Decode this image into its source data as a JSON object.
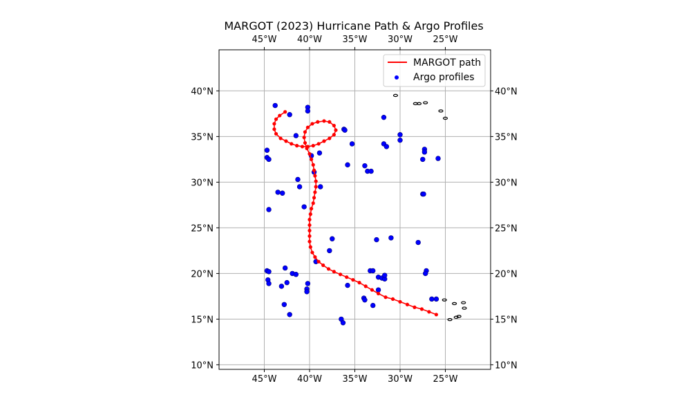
{
  "chart_data": {
    "type": "scatter",
    "title": "MARGOT (2023) Hurricane Path & Argo Profiles",
    "xlim": [
      -50,
      -20
    ],
    "ylim": [
      9.5,
      44.5
    ],
    "x_ticks": [
      -45,
      -40,
      -35,
      -30,
      -25
    ],
    "x_tick_labels": [
      "45°W",
      "40°W",
      "35°W",
      "30°W",
      "25°W"
    ],
    "y_ticks": [
      10,
      15,
      20,
      25,
      30,
      35,
      40
    ],
    "y_tick_labels": [
      "10°N",
      "15°N",
      "20°N",
      "25°N",
      "30°N",
      "35°N",
      "40°N"
    ],
    "grid": true,
    "legend": {
      "placement": "top-right",
      "entries": [
        {
          "label": "MARGOT path",
          "color": "#ff0000",
          "kind": "line"
        },
        {
          "label": "Argo profiles",
          "color": "#0000ff",
          "kind": "marker"
        }
      ]
    },
    "series": [
      {
        "name": "MARGOT path",
        "color": "#ff0000",
        "points": [
          [
            -26.0,
            15.5
          ],
          [
            -26.8,
            15.8
          ],
          [
            -27.6,
            16.1
          ],
          [
            -28.4,
            16.3
          ],
          [
            -29.2,
            16.6
          ],
          [
            -30.0,
            16.9
          ],
          [
            -30.8,
            17.2
          ],
          [
            -31.6,
            17.4
          ],
          [
            -32.4,
            17.8
          ],
          [
            -33.1,
            18.2
          ],
          [
            -33.8,
            18.6
          ],
          [
            -34.5,
            19.0
          ],
          [
            -35.2,
            19.3
          ],
          [
            -35.9,
            19.6
          ],
          [
            -36.6,
            19.9
          ],
          [
            -37.3,
            20.2
          ],
          [
            -37.9,
            20.5
          ],
          [
            -38.5,
            20.9
          ],
          [
            -39.0,
            21.3
          ],
          [
            -39.4,
            21.8
          ],
          [
            -39.7,
            22.3
          ],
          [
            -39.9,
            22.9
          ],
          [
            -40.0,
            23.5
          ],
          [
            -40.0,
            24.1
          ],
          [
            -40.0,
            24.7
          ],
          [
            -40.0,
            25.3
          ],
          [
            -40.0,
            25.9
          ],
          [
            -39.9,
            26.5
          ],
          [
            -39.8,
            27.1
          ],
          [
            -39.6,
            27.7
          ],
          [
            -39.5,
            28.3
          ],
          [
            -39.4,
            28.9
          ],
          [
            -39.3,
            29.5
          ],
          [
            -39.3,
            30.1
          ],
          [
            -39.4,
            30.7
          ],
          [
            -39.5,
            31.3
          ],
          [
            -39.6,
            31.9
          ],
          [
            -39.8,
            32.5
          ],
          [
            -40.0,
            33.1
          ],
          [
            -40.3,
            33.7
          ],
          [
            -40.5,
            34.3
          ],
          [
            -40.6,
            34.9
          ],
          [
            -40.5,
            35.5
          ],
          [
            -40.2,
            36.0
          ],
          [
            -39.7,
            36.4
          ],
          [
            -39.1,
            36.6
          ],
          [
            -38.4,
            36.7
          ],
          [
            -37.8,
            36.6
          ],
          [
            -37.3,
            36.2
          ],
          [
            -37.1,
            35.7
          ],
          [
            -37.3,
            35.2
          ],
          [
            -37.8,
            34.8
          ],
          [
            -38.4,
            34.5
          ],
          [
            -39.0,
            34.2
          ],
          [
            -39.6,
            34.0
          ],
          [
            -40.2,
            33.9
          ],
          [
            -40.8,
            33.9
          ],
          [
            -41.4,
            34.0
          ],
          [
            -42.0,
            34.2
          ],
          [
            -42.6,
            34.5
          ],
          [
            -43.2,
            34.8
          ],
          [
            -43.7,
            35.3
          ],
          [
            -43.9,
            35.8
          ],
          [
            -43.9,
            36.4
          ],
          [
            -43.7,
            36.9
          ],
          [
            -43.3,
            37.3
          ],
          [
            -42.7,
            37.7
          ]
        ]
      },
      {
        "name": "Argo profiles",
        "color": "#0000ff",
        "points": [
          [
            -43.8,
            38.4
          ],
          [
            -42.2,
            37.4
          ],
          [
            -40.2,
            38.2
          ],
          [
            -40.2,
            37.8
          ],
          [
            -41.5,
            35.1
          ],
          [
            -44.7,
            33.5
          ],
          [
            -44.7,
            32.7
          ],
          [
            -44.5,
            32.5
          ],
          [
            -41.3,
            30.3
          ],
          [
            -41.1,
            29.5
          ],
          [
            -43.5,
            28.9
          ],
          [
            -43.0,
            28.8
          ],
          [
            -44.5,
            27.0
          ],
          [
            -40.6,
            27.3
          ],
          [
            -39.5,
            31.1
          ],
          [
            -39.8,
            32.9
          ],
          [
            -38.9,
            33.2
          ],
          [
            -38.8,
            29.5
          ],
          [
            -36.2,
            35.8
          ],
          [
            -36.1,
            35.7
          ],
          [
            -35.3,
            34.2
          ],
          [
            -35.8,
            31.9
          ],
          [
            -33.9,
            31.8
          ],
          [
            -33.6,
            31.2
          ],
          [
            -33.2,
            31.2
          ],
          [
            -31.8,
            37.1
          ],
          [
            -31.8,
            34.2
          ],
          [
            -31.5,
            33.9
          ],
          [
            -30.0,
            35.2
          ],
          [
            -30.0,
            34.6
          ],
          [
            -27.3,
            33.6
          ],
          [
            -27.3,
            33.3
          ],
          [
            -27.5,
            32.5
          ],
          [
            -25.8,
            32.6
          ],
          [
            -27.5,
            28.7
          ],
          [
            -27.4,
            28.7
          ],
          [
            -37.5,
            23.8
          ],
          [
            -37.8,
            22.5
          ],
          [
            -39.3,
            21.3
          ],
          [
            -32.6,
            23.7
          ],
          [
            -31.0,
            23.9
          ],
          [
            -28.0,
            23.4
          ],
          [
            -27.1,
            20.3
          ],
          [
            -27.2,
            20.0
          ],
          [
            -33.3,
            20.3
          ],
          [
            -33.0,
            20.3
          ],
          [
            -32.4,
            19.6
          ],
          [
            -32.0,
            19.5
          ],
          [
            -31.7,
            19.4
          ],
          [
            -31.7,
            19.8
          ],
          [
            -32.4,
            18.2
          ],
          [
            -34.0,
            17.3
          ],
          [
            -33.9,
            17.1
          ],
          [
            -33.0,
            16.5
          ],
          [
            -35.8,
            18.7
          ],
          [
            -36.5,
            15.0
          ],
          [
            -36.3,
            14.6
          ],
          [
            -44.7,
            20.3
          ],
          [
            -44.5,
            20.2
          ],
          [
            -44.6,
            19.3
          ],
          [
            -44.5,
            18.9
          ],
          [
            -42.7,
            20.6
          ],
          [
            -41.9,
            20.0
          ],
          [
            -41.5,
            19.9
          ],
          [
            -42.5,
            19.0
          ],
          [
            -43.1,
            18.6
          ],
          [
            -40.2,
            18.9
          ],
          [
            -40.3,
            18.3
          ],
          [
            -40.3,
            18.0
          ],
          [
            -42.8,
            16.6
          ],
          [
            -42.2,
            15.5
          ],
          [
            -26.5,
            17.2
          ],
          [
            -26.0,
            17.2
          ]
        ]
      }
    ],
    "coastline_islands": [
      [
        -30.5,
        39.5
      ],
      [
        -28.3,
        38.6
      ],
      [
        -27.9,
        38.6
      ],
      [
        -27.2,
        38.7
      ],
      [
        -25.5,
        37.8
      ],
      [
        -25.0,
        37.0
      ],
      [
        -25.1,
        17.1
      ],
      [
        -24.0,
        16.7
      ],
      [
        -23.0,
        16.8
      ],
      [
        -22.9,
        16.2
      ],
      [
        -23.5,
        15.3
      ],
      [
        -23.8,
        15.2
      ],
      [
        -24.5,
        14.95
      ]
    ]
  }
}
